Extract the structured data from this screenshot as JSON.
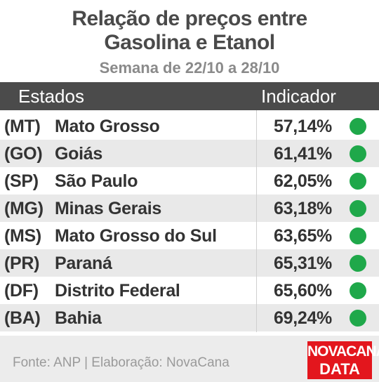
{
  "header": {
    "title": [
      "Relação de preços entre",
      "Gasolina e Etanol"
    ],
    "subtitle": "Semana de 22/10 a 28/10"
  },
  "table": {
    "columns": [
      "Estados",
      "Indicador"
    ],
    "rows": [
      [
        "(MT)",
        "Mato Grosso",
        "57,14%"
      ],
      [
        "(GO)",
        "Goiás",
        "61,41%"
      ],
      [
        "(SP)",
        "São Paulo",
        "62,05%"
      ],
      [
        "(MG)",
        "Minas Gerais",
        "63,18%"
      ],
      [
        "(MS)",
        "Mato Grosso do Sul",
        "63,65%"
      ],
      [
        "(PR)",
        "Paraná",
        "65,31%"
      ],
      [
        "(DF)",
        "Distrito Federal",
        "65,60%"
      ],
      [
        "(BA)",
        "Bahia",
        "69,24%"
      ]
    ]
  },
  "footer": {
    "source": "Fonte: ANP | Elaboração: NovaCana",
    "logo": [
      "NOVACANA",
      "DATA"
    ]
  }
}
